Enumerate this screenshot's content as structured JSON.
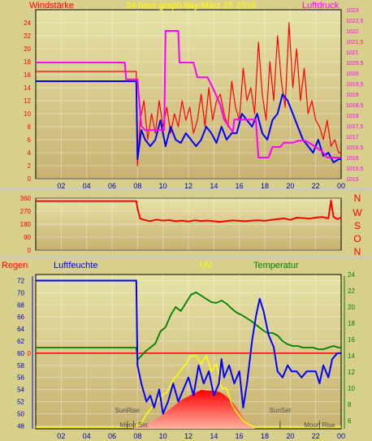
{
  "header": {
    "left_label": "Windstärke",
    "title": "24 hour graph day  März 25 2015",
    "right_label": "Luftdruck"
  },
  "colors": {
    "panel_bg": "#d7cf8c",
    "plot_top": "#e6e2a6",
    "plot_bottom": "#c8b273",
    "wind": "#0000ff",
    "gust": "#ff0000",
    "pressure": "#ff00ff",
    "direction": "#ff0000",
    "humidity": "#0000ff",
    "uv": "#ffff00",
    "temperature": "#008000",
    "rain": "#ff0000",
    "solar": "#ff0000",
    "axis_label": "#ff0000",
    "time_tick": "#0000c0"
  },
  "compass": [
    "N",
    "W",
    "S",
    "O",
    "N"
  ],
  "panel3_labels": {
    "rain": "Regen",
    "humidity": "Luftfeuchte",
    "uv": "UV",
    "temperature": "Temperatur"
  },
  "chart_data": [
    {
      "id": "wind_pressure",
      "type": "line",
      "title": "24 hour graph day  März 25 2015",
      "x_ticks": [
        "02",
        "04",
        "06",
        "08",
        "10",
        "12",
        "14",
        "16",
        "18",
        "20",
        "22",
        "00"
      ],
      "x_range_hours": [
        0,
        24
      ],
      "left_axis": {
        "label": "Windstärke",
        "range": [
          0,
          26
        ],
        "ticks": [
          "0",
          "2",
          "4",
          "6",
          "8",
          "10",
          "12",
          "14",
          "16",
          "18",
          "20",
          "22",
          "24"
        ]
      },
      "right_axis": {
        "label": "Luftdruck",
        "range": [
          1015,
          1023
        ],
        "ticks": [
          "1015",
          "1015,5",
          "1016",
          "1016,5",
          "1017",
          "1017,5",
          "1018",
          "1018,5",
          "1019",
          "1019,5",
          "1020",
          "1020,5",
          "1021",
          "1021,5",
          "1022",
          "1022,5",
          "1023"
        ]
      },
      "series": [
        {
          "name": "Windstärke",
          "axis": "left",
          "x": [
            0,
            7.9,
            8.0,
            8.3,
            8.6,
            9,
            9.4,
            9.8,
            10.2,
            10.6,
            11,
            11.4,
            11.8,
            12.2,
            12.6,
            13,
            13.4,
            13.8,
            14.2,
            14.6,
            15,
            15.4,
            15.8,
            16.2,
            16.6,
            17,
            17.4,
            17.8,
            18.2,
            18.6,
            19,
            19.4,
            19.8,
            20.2,
            20.6,
            21,
            21.4,
            21.8,
            22.2,
            22.6,
            23,
            23.4,
            23.8,
            24
          ],
          "values": [
            15,
            15,
            3,
            7.5,
            6,
            5,
            6,
            9,
            5,
            8,
            6,
            5.5,
            7,
            6,
            5,
            6,
            8,
            7,
            5.5,
            8,
            6,
            7,
            7,
            10,
            9,
            8,
            10,
            7,
            6,
            9,
            10,
            13,
            12,
            10,
            8,
            6,
            5,
            4,
            6,
            3.5,
            4,
            2.5,
            3,
            3
          ]
        },
        {
          "x": [
            0,
            7.9,
            8.0,
            8.2,
            8.5,
            8.8,
            9.1,
            9.4,
            9.7,
            10,
            10.3,
            10.6,
            10.9,
            11.2,
            11.5,
            11.8,
            12.1,
            12.4,
            12.7,
            13,
            13.3,
            13.6,
            13.9,
            14.2,
            14.5,
            14.8,
            15.1,
            15.4,
            15.7,
            16,
            16.3,
            16.6,
            16.9,
            17.2,
            17.5,
            17.8,
            18.1,
            18.4,
            18.7,
            19,
            19.3,
            19.6,
            19.9,
            20.2,
            20.5,
            20.8,
            21.1,
            21.4,
            21.7,
            22,
            22.3,
            22.6,
            22.9,
            23.2,
            23.5,
            23.8,
            24
          ],
          "values": [
            16.5,
            16.5,
            2,
            9,
            12,
            6,
            10,
            7,
            12,
            8,
            11,
            7,
            10,
            8,
            12,
            9,
            11,
            7,
            9,
            13,
            8,
            14,
            9,
            12,
            13,
            10,
            8,
            15,
            11,
            9,
            17,
            12,
            14,
            10,
            21,
            13,
            9,
            18,
            12,
            22,
            15,
            11,
            24,
            14,
            20,
            12,
            17,
            10,
            12,
            9,
            8,
            6,
            9,
            5,
            6,
            4,
            4
          ]
        },
        {
          "name": "Luftdruck",
          "axis": "right",
          "x": [
            0,
            7.0,
            7.1,
            8.0,
            8.3,
            8.6,
            9,
            9.4,
            10.1,
            10.2,
            11.2,
            11.3,
            12.4,
            12.7,
            13.5,
            14,
            14.5,
            14.8,
            15.5,
            15.6,
            17.3,
            17.5,
            18.3,
            18.6,
            19.2,
            19.5,
            20.2,
            20.6,
            21.2,
            22,
            22.5,
            22.9,
            23,
            24
          ],
          "values": [
            1020.5,
            1020.5,
            1019.7,
            1019.7,
            1017.5,
            1017.3,
            1017.3,
            1017.3,
            1017.3,
            1022,
            1022,
            1020.5,
            1020.5,
            1019.8,
            1019.8,
            1019.2,
            1018.5,
            1017.8,
            1017.2,
            1017.8,
            1017.8,
            1016,
            1016,
            1016.5,
            1016.5,
            1016.7,
            1016.7,
            1016.8,
            1016.8,
            1016.5,
            1016.3,
            1016,
            1016,
            1016
          ]
        }
      ]
    },
    {
      "id": "wind_direction",
      "type": "line",
      "x_range_hours": [
        0,
        24
      ],
      "axis": {
        "range": [
          0,
          360
        ],
        "ticks": [
          "0",
          "90",
          "180",
          "270",
          "360"
        ]
      },
      "series": [
        {
          "x": [
            0,
            7.9,
            8.0,
            8.2,
            8.5,
            9,
            9.5,
            10,
            10.5,
            11,
            11.5,
            12,
            12.5,
            13,
            13.5,
            14,
            14.5,
            15,
            15.5,
            16,
            16.5,
            17,
            17.5,
            18,
            18.5,
            19,
            19.5,
            20,
            20.5,
            21,
            21.5,
            22,
            22.5,
            23,
            23.2,
            23.4,
            23.7,
            24
          ],
          "values": [
            340,
            340,
            290,
            220,
            210,
            200,
            212,
            205,
            208,
            200,
            205,
            198,
            207,
            202,
            205,
            200,
            196,
            202,
            206,
            203,
            200,
            205,
            207,
            203,
            209,
            215,
            220,
            210,
            225,
            222,
            218,
            225,
            230,
            220,
            345,
            230,
            215,
            225
          ]
        }
      ]
    },
    {
      "id": "humidity_uv_temp",
      "type": "line",
      "x_range_hours": [
        0,
        24
      ],
      "left_axis": {
        "label": "Luftfeuchte",
        "range": [
          47.5,
          73
        ],
        "ticks": [
          "48",
          "50",
          "52",
          "54",
          "56",
          "58",
          "60",
          "62",
          "64",
          "66",
          "68",
          "70",
          "72"
        ]
      },
      "right_axis": {
        "label": "Temperatur",
        "range": [
          5,
          24
        ],
        "ticks": [
          "6",
          "8",
          "10",
          "12",
          "14",
          "16",
          "18",
          "20",
          "22",
          "24"
        ]
      },
      "rain_zero_label": "0",
      "annotations": [
        {
          "label": "SunRise",
          "hour": 7.2
        },
        {
          "label": "Moon Set",
          "hour": 7.7
        },
        {
          "label": "SunSet",
          "hour": 19.2
        },
        {
          "label": "Moon Rise",
          "hour": 22.3
        }
      ],
      "series": [
        {
          "name": "Luftfeuchte",
          "axis": "left",
          "x": [
            0,
            7.9,
            8.0,
            8.3,
            8.7,
            9,
            9.3,
            9.7,
            10,
            10.4,
            10.8,
            11.2,
            11.6,
            12,
            12.4,
            12.8,
            13.2,
            13.6,
            14,
            14.4,
            14.6,
            14.8,
            15.2,
            15.6,
            16,
            16.3,
            16.6,
            17,
            17.3,
            17.6,
            17.9,
            18.3,
            18.7,
            19,
            19.4,
            19.8,
            20.1,
            20.5,
            20.9,
            21.3,
            21.7,
            22,
            22.3,
            22.6,
            23,
            23.3,
            23.7,
            24
          ],
          "values": [
            72,
            72,
            58,
            55,
            52,
            53,
            51,
            54,
            50,
            52,
            55,
            52,
            54,
            56,
            53,
            58,
            55,
            57,
            53,
            55,
            59,
            56,
            58,
            55,
            57,
            51,
            55,
            62,
            66,
            69,
            67,
            63,
            61,
            57,
            56,
            58,
            57,
            57,
            56,
            57,
            57,
            57,
            55,
            58,
            56,
            59,
            60,
            60
          ]
        },
        {
          "name": "UV",
          "axis": "right",
          "x": [
            0,
            7.5,
            8.2,
            8.8,
            9.3,
            9.8,
            10.3,
            10.8,
            11.3,
            11.8,
            12.2,
            12.6,
            13,
            13.4,
            13.8,
            14.2,
            14.6,
            15,
            15.4,
            15.8,
            16.3,
            16.8,
            17.2,
            24
          ],
          "values": [
            5.2,
            5.2,
            5.5,
            7,
            8,
            9,
            9.5,
            11,
            12,
            13,
            14,
            14,
            13,
            14,
            12,
            13,
            10,
            10,
            8,
            7,
            6,
            5.5,
            5.2,
            5.2
          ]
        },
        {
          "name": "Temperatur",
          "axis": "right",
          "x": [
            0,
            7.9,
            8.0,
            8.3,
            8.6,
            9,
            9.4,
            9.8,
            10.2,
            10.6,
            11,
            11.4,
            11.8,
            12.2,
            12.6,
            13,
            13.4,
            13.8,
            14.2,
            14.6,
            15,
            15.4,
            15.8,
            16.2,
            16.6,
            17,
            17.4,
            17.8,
            18.2,
            18.6,
            19,
            19.4,
            19.8,
            20.2,
            20.6,
            21,
            21.4,
            21.8,
            22.2,
            22.6,
            23,
            23.4,
            23.8,
            24
          ],
          "values": [
            15,
            15,
            13.5,
            14,
            14.5,
            15,
            15.5,
            17,
            17.5,
            19,
            20,
            19.5,
            20.5,
            21.5,
            21.8,
            21.4,
            21,
            20.6,
            20.5,
            20.8,
            20.4,
            19.8,
            19.3,
            19,
            18.6,
            18.2,
            17.7,
            17.2,
            16.8,
            16.8,
            16.5,
            15.8,
            15.4,
            15.2,
            15.2,
            15.0,
            15.0,
            15.0,
            14.8,
            14.8,
            15.0,
            15.2,
            15.0,
            15.0
          ]
        },
        {
          "name": "Regen",
          "axis": "rain",
          "x": [
            0,
            24
          ],
          "values": [
            0,
            0
          ]
        },
        {
          "name": "solar",
          "axis": "right",
          "x": [
            7.6,
            8.5,
            9.5,
            10.5,
            11.5,
            12.5,
            13,
            13.5,
            14,
            14.5,
            15,
            15.5,
            16,
            16.5,
            17.2
          ],
          "values": [
            5.2,
            5.3,
            6.2,
            7.4,
            8.6,
            9.4,
            9.8,
            9.7,
            9.7,
            9.5,
            9.0,
            8.2,
            7.2,
            6.0,
            5.2
          ]
        }
      ]
    }
  ]
}
